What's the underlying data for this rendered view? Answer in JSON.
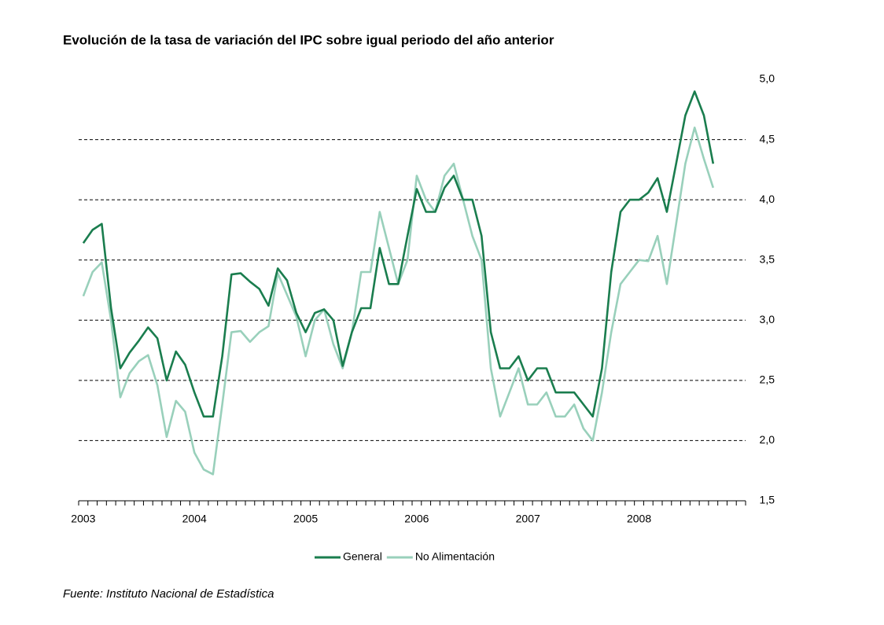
{
  "chart_data": {
    "type": "line",
    "title": "Evolución de la tasa de variación del IPC sobre igual  periodo del año anterior",
    "source": "Fuente: Instituto Nacional de Estadística",
    "categories": [
      "2003",
      null,
      null,
      null,
      null,
      null,
      null,
      null,
      null,
      null,
      null,
      null,
      "2004",
      null,
      null,
      null,
      null,
      null,
      null,
      null,
      null,
      null,
      null,
      null,
      "2005",
      null,
      null,
      null,
      null,
      null,
      null,
      null,
      null,
      null,
      null,
      null,
      "2006",
      null,
      null,
      null,
      null,
      null,
      null,
      null,
      null,
      null,
      null,
      null,
      "2007",
      null,
      null,
      null,
      null,
      null,
      null,
      null,
      null,
      null,
      null,
      null,
      "2008",
      null,
      null,
      null,
      null,
      null,
      null,
      null,
      null,
      null,
      null,
      null
    ],
    "series": [
      {
        "name": "General",
        "color": "#1a7d4e",
        "values": [
          3.64,
          3.75,
          3.8,
          3.1,
          2.6,
          2.73,
          2.83,
          2.94,
          2.85,
          2.5,
          2.74,
          2.63,
          2.4,
          2.2,
          2.2,
          2.7,
          3.38,
          3.39,
          3.32,
          3.26,
          3.12,
          3.43,
          3.33,
          3.06,
          2.9,
          3.06,
          3.09,
          3.0,
          2.62,
          2.9,
          3.1,
          3.1,
          3.6,
          3.3,
          3.3,
          3.7,
          4.09,
          3.9,
          3.9,
          4.1,
          4.2,
          4.0,
          4.0,
          3.7,
          2.9,
          2.6,
          2.6,
          2.7,
          2.5,
          2.6,
          2.6,
          2.4,
          2.4,
          2.4,
          2.3,
          2.2,
          2.6,
          3.4,
          3.9,
          4.0,
          4.0,
          4.06,
          4.18,
          3.9,
          4.3,
          4.7,
          4.9,
          4.7,
          4.3,
          null,
          null,
          null
        ]
      },
      {
        "name": "No Alimentación",
        "color": "#99d0bb",
        "values": [
          3.2,
          3.4,
          3.48,
          3.0,
          2.36,
          2.56,
          2.66,
          2.71,
          2.46,
          2.03,
          2.33,
          2.24,
          1.9,
          1.76,
          1.72,
          2.3,
          2.9,
          2.91,
          2.82,
          2.9,
          2.95,
          3.39,
          3.21,
          3.03,
          2.7,
          3.0,
          3.09,
          2.8,
          2.6,
          2.9,
          3.4,
          3.4,
          3.9,
          3.6,
          3.3,
          3.5,
          4.2,
          4.0,
          3.9,
          4.2,
          4.3,
          4.0,
          3.7,
          3.5,
          2.6,
          2.2,
          2.4,
          2.6,
          2.3,
          2.3,
          2.4,
          2.2,
          2.2,
          2.3,
          2.1,
          2.0,
          2.4,
          2.9,
          3.3,
          3.4,
          3.5,
          3.49,
          3.7,
          3.3,
          3.8,
          4.3,
          4.6,
          4.34,
          4.1,
          null,
          null,
          null
        ]
      }
    ],
    "ylim": [
      1.5,
      5.0
    ],
    "yticks": [
      {
        "value": 1.5,
        "label": "1,5"
      },
      {
        "value": 2.0,
        "label": "2,0"
      },
      {
        "value": 2.5,
        "label": "2,5"
      },
      {
        "value": 3.0,
        "label": "3,0"
      },
      {
        "value": 3.5,
        "label": "3,5"
      },
      {
        "value": 4.0,
        "label": "4,0"
      },
      {
        "value": 4.5,
        "label": "4,5"
      },
      {
        "value": 5.0,
        "label": "5,0"
      }
    ],
    "grid": true,
    "legend": "bottom"
  }
}
